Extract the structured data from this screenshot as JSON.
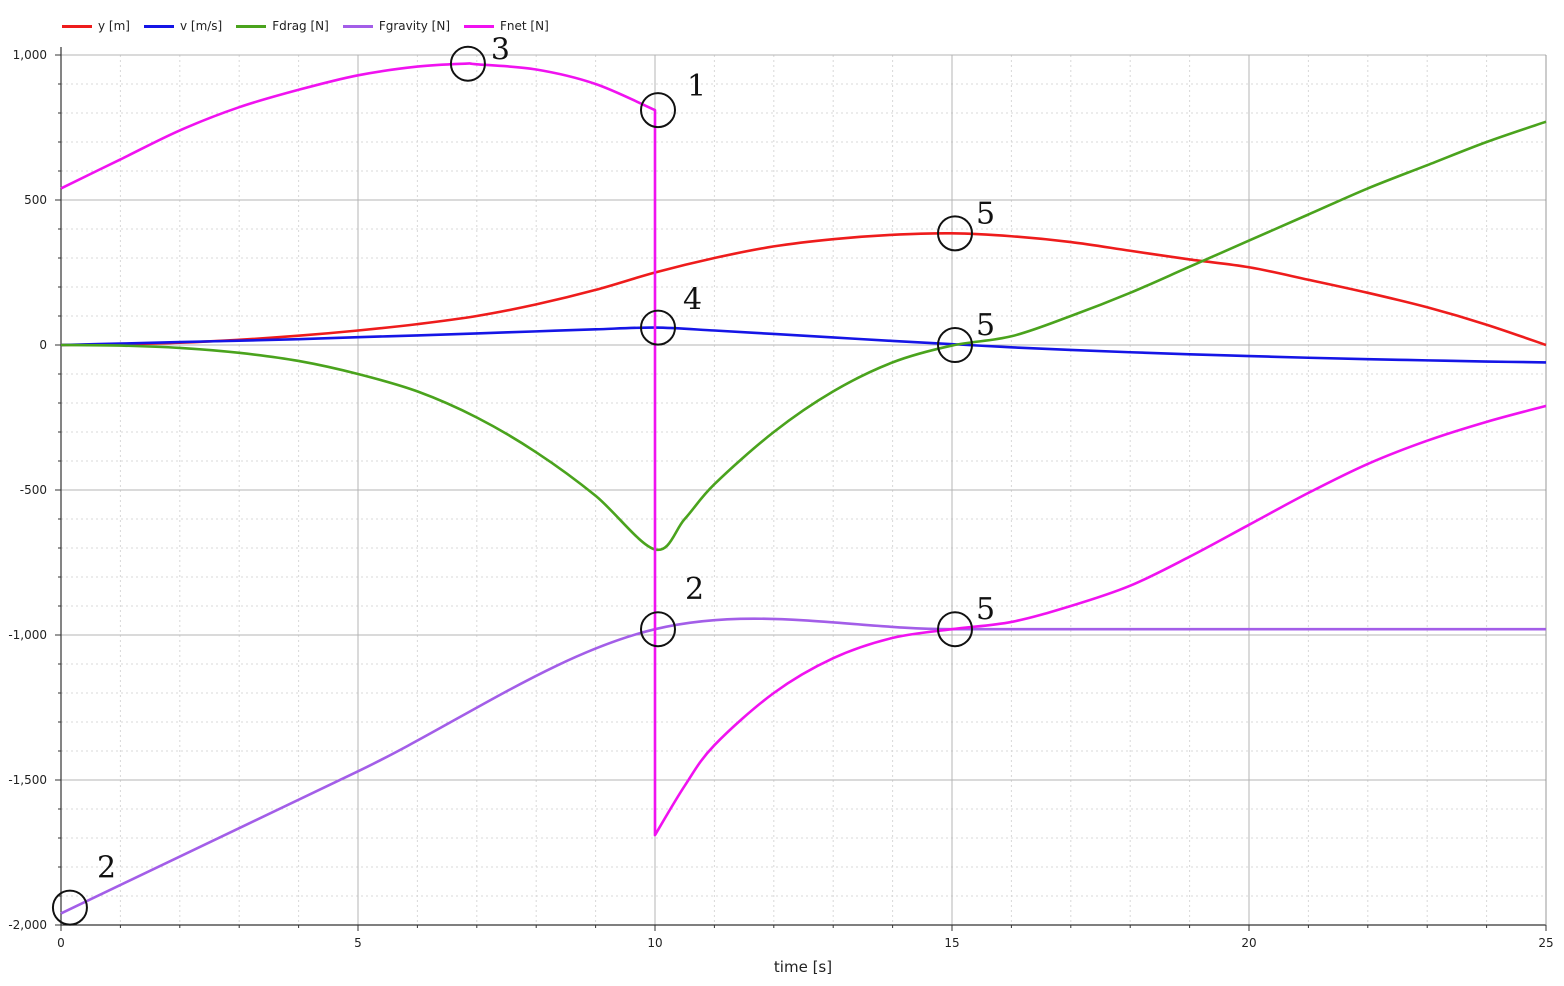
{
  "legend": [
    {
      "label": "y [m]",
      "color": "#ee1c1c"
    },
    {
      "label": "v [m/s]",
      "color": "#1515e6"
    },
    {
      "label": "Fdrag [N]",
      "color": "#4aa31d"
    },
    {
      "label": "Fgravity [N]",
      "color": "#a35ee8"
    },
    {
      "label": "Fnet [N]",
      "color": "#f012f0"
    }
  ],
  "chart_data": {
    "type": "line",
    "title": "",
    "xlabel": "time [s]",
    "ylabel": "",
    "xlim": [
      0,
      25
    ],
    "ylim": [
      -2000,
      1000
    ],
    "x_ticks": [
      0,
      5,
      10,
      15,
      20,
      25
    ],
    "y_ticks": [
      -2000,
      -1500,
      -1000,
      -500,
      0,
      500,
      1000
    ],
    "x_tick_labels": [
      "0",
      "5",
      "10",
      "15",
      "20",
      "25"
    ],
    "y_tick_labels": [
      "-2,000",
      "-1,500",
      "-1,000",
      "-500",
      "0",
      "500",
      "1,000"
    ],
    "grid": true,
    "legend_position": "top-left",
    "series": [
      {
        "name": "y [m]",
        "color": "#ee1c1c",
        "x": [
          0,
          1,
          2,
          3,
          4,
          5,
          6,
          7,
          8,
          9,
          10,
          11,
          12,
          13,
          14,
          15,
          16,
          17,
          18,
          19,
          20,
          21,
          22,
          23,
          24,
          25
        ],
        "y": [
          0,
          3,
          8,
          18,
          32,
          50,
          72,
          100,
          140,
          190,
          250,
          300,
          340,
          365,
          380,
          385,
          375,
          355,
          325,
          295,
          268,
          225,
          180,
          130,
          70,
          0
        ]
      },
      {
        "name": "v [m/s]",
        "color": "#1515e6",
        "x": [
          0,
          1,
          2,
          3,
          4,
          5,
          6,
          7,
          8,
          9,
          10,
          11,
          12,
          13,
          14,
          15,
          16,
          17,
          18,
          19,
          20,
          21,
          22,
          23,
          24,
          25
        ],
        "y": [
          0,
          5,
          10,
          15,
          20,
          27,
          33,
          40,
          47,
          54,
          60,
          50,
          38,
          26,
          14,
          3,
          -8,
          -17,
          -25,
          -32,
          -38,
          -44,
          -49,
          -53,
          -57,
          -60
        ]
      },
      {
        "name": "Fdrag [N]",
        "color": "#4aa31d",
        "x": [
          0,
          1,
          2,
          3,
          4,
          5,
          6,
          7,
          8,
          9,
          10,
          10.5,
          11,
          12,
          13,
          14,
          15,
          16,
          17,
          18,
          19,
          20,
          21,
          22,
          23,
          24,
          25
        ],
        "y": [
          0,
          -2,
          -10,
          -27,
          -55,
          -100,
          -160,
          -250,
          -370,
          -520,
          -705,
          -600,
          -480,
          -300,
          -160,
          -60,
          -2,
          30,
          100,
          180,
          270,
          360,
          450,
          540,
          620,
          700,
          770
        ]
      },
      {
        "name": "Fgravity [N]",
        "color": "#a35ee8",
        "x": [
          0,
          5,
          10,
          15,
          20,
          25
        ],
        "y": [
          -1960,
          -1470,
          -980,
          -980,
          -980,
          -980
        ]
      },
      {
        "name": "Fnet [N]",
        "color": "#f012f0",
        "x": [
          0,
          1,
          2,
          3,
          4,
          5,
          6,
          6.8,
          7,
          8,
          9,
          10,
          10,
          10.5,
          11,
          12,
          13,
          14,
          15,
          16,
          17,
          18,
          19,
          20,
          21,
          22,
          23,
          24,
          25
        ],
        "y": [
          540,
          640,
          740,
          820,
          880,
          930,
          960,
          970,
          968,
          950,
          900,
          810,
          -1690,
          -1520,
          -1380,
          -1200,
          -1080,
          -1010,
          -980,
          -955,
          -900,
          -830,
          -730,
          -620,
          -510,
          -410,
          -330,
          -265,
          -210
        ]
      }
    ],
    "annotations": [
      {
        "label": "1",
        "x": 10,
        "y": 810
      },
      {
        "label": "2",
        "x": 10,
        "y": -980
      },
      {
        "label": "2",
        "x": 0.1,
        "y": -1940
      },
      {
        "label": "3",
        "x": 6.8,
        "y": 970
      },
      {
        "label": "4",
        "x": 10,
        "y": 60
      },
      {
        "label": "5",
        "x": 15,
        "y": 385
      },
      {
        "label": "5",
        "x": 15,
        "y": 0
      },
      {
        "label": "5",
        "x": 15,
        "y": -980
      }
    ]
  }
}
